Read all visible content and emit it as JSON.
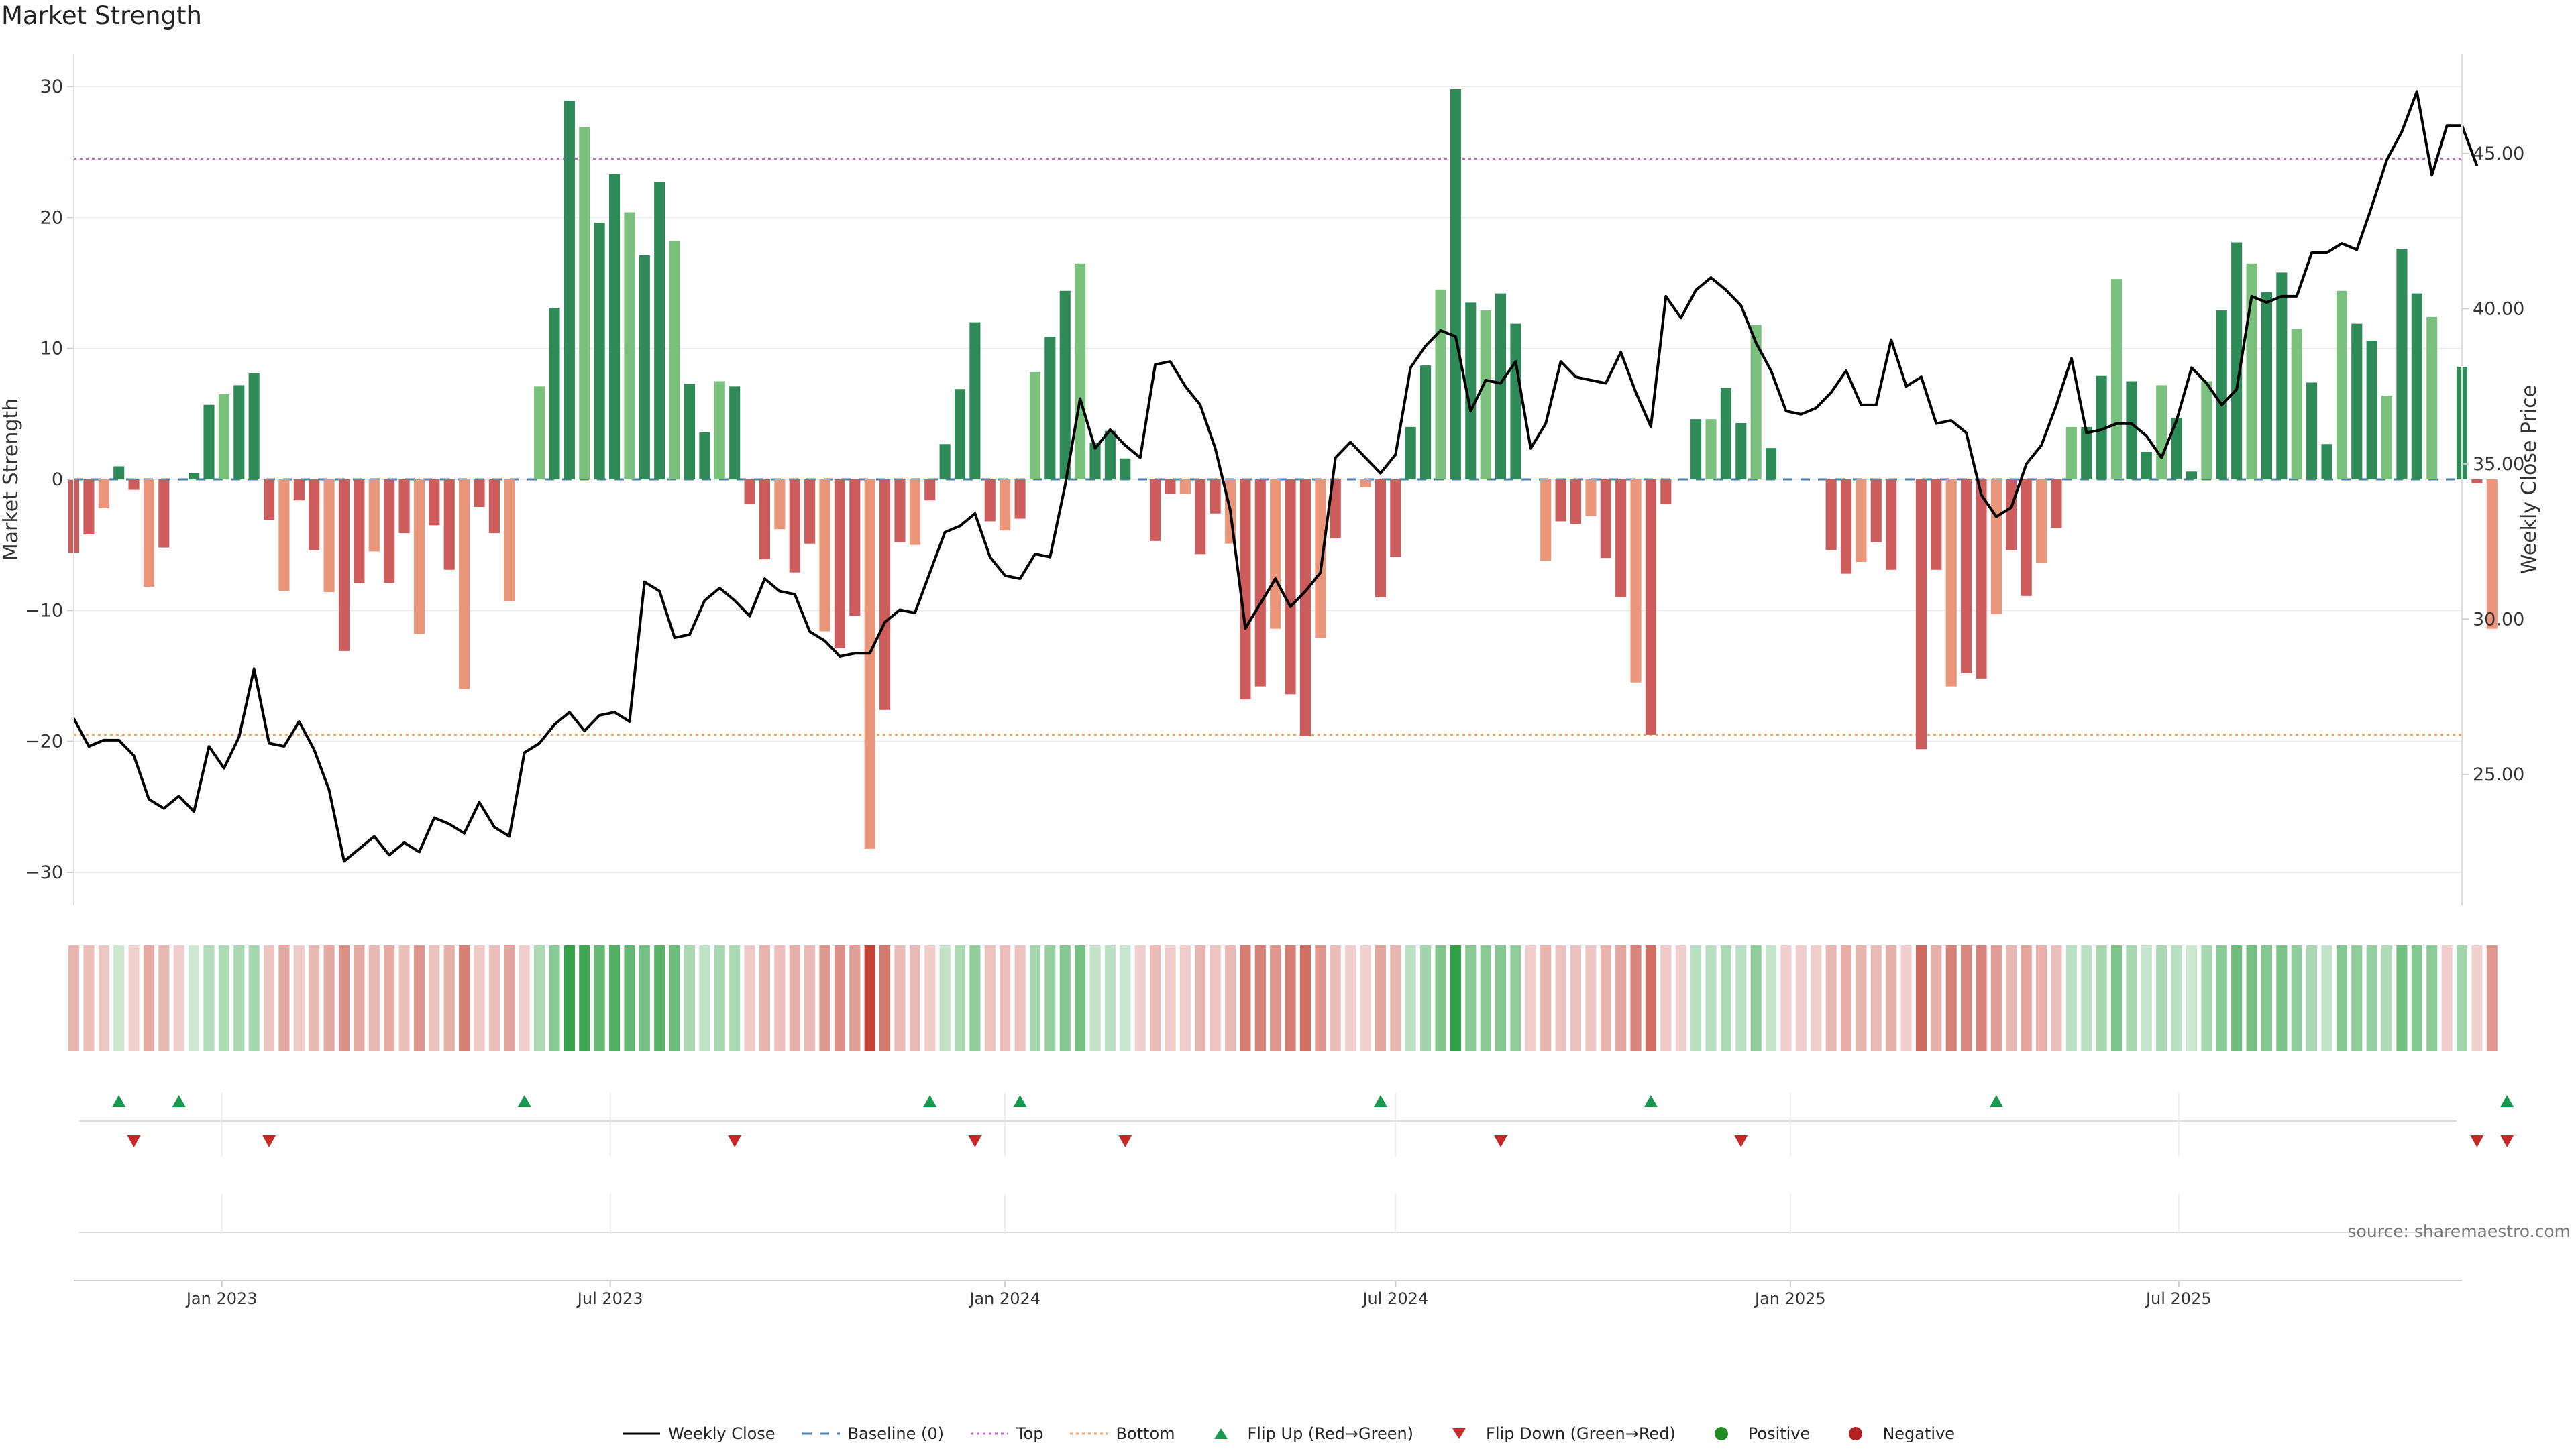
{
  "title": "Market Strength",
  "source": "source: sharemaestro.com",
  "colors": {
    "strong_green": "#2e8b57",
    "light_green": "#7bc17e",
    "strong_red": "#cd5c5c",
    "light_red": "#e9967a",
    "line": "#000000",
    "top_line": "#c264c8",
    "bottom_line": "#f4a460",
    "baseline": "#4a7fb0",
    "flip_up": "#1a9850",
    "flip_down": "#c62828",
    "positive": "#228b22",
    "negative": "#b22222"
  },
  "legend": [
    {
      "key": "weekly_close",
      "label": "Weekly Close",
      "icon": "line-solid-icon"
    },
    {
      "key": "baseline",
      "label": "Baseline (0)",
      "icon": "line-dashed-icon"
    },
    {
      "key": "top",
      "label": "Top",
      "icon": "line-dotted-purple-icon"
    },
    {
      "key": "bottom",
      "label": "Bottom",
      "icon": "line-dotted-orange-icon"
    },
    {
      "key": "flip_up",
      "label": "Flip Up (Red→Green)",
      "icon": "triangle-up-icon"
    },
    {
      "key": "flip_down",
      "label": "Flip Down (Green→Red)",
      "icon": "triangle-down-icon"
    },
    {
      "key": "positive",
      "label": "Positive",
      "icon": "dot-green-icon"
    },
    {
      "key": "negative",
      "label": "Negative",
      "icon": "dot-red-icon"
    }
  ],
  "chart_data": {
    "type": "bar",
    "title": "Market Strength",
    "ylabel": "Market Strength",
    "y2label": "Weekly Close Price",
    "ylim": [
      -32,
      32
    ],
    "y2lim": [
      21.0,
      48.0
    ],
    "yticks": [
      -30,
      -20,
      -10,
      0,
      10,
      20,
      30
    ],
    "y2ticks": [
      "25.00",
      "30.00",
      "35.00",
      "40.00",
      "45.00"
    ],
    "top_level": 24.5,
    "bottom_level": -19.5,
    "grid": true,
    "x_start": "2022-10-24",
    "x_end": "2025-11-10",
    "xticks": [
      {
        "label": "Jan 2023",
        "date": "2023-01-01"
      },
      {
        "label": "Jul 2023",
        "date": "2023-07-01"
      },
      {
        "label": "Jan 2024",
        "date": "2024-01-01"
      },
      {
        "label": "Jul 2024",
        "date": "2024-07-01"
      },
      {
        "label": "Jan 2025",
        "date": "2025-01-01"
      },
      {
        "label": "Jul 2025",
        "date": "2025-07-01"
      }
    ],
    "start_date": "2022-10-24",
    "interval_days": 7,
    "strength": [
      -5.6,
      -4.2,
      -2.2,
      1,
      -0.8,
      -8.2,
      -5.2,
      0,
      0.5,
      5.7,
      6.5,
      7.2,
      8.1,
      -3.1,
      -8.5,
      -1.6,
      -5.4,
      -8.6,
      -13.1,
      -7.9,
      -5.5,
      -7.9,
      -4.1,
      -11.8,
      -3.5,
      -6.9,
      -16,
      -2.1,
      -4.1,
      -9.3,
      0,
      7.1,
      13.1,
      28.9,
      26.9,
      19.6,
      23.3,
      20.4,
      17.1,
      22.7,
      18.2,
      7.3,
      3.6,
      7.5,
      7.1,
      -1.9,
      -6.1,
      -3.8,
      -7.1,
      -4.9,
      -11.6,
      -12.9,
      -10.4,
      -28.2,
      -17.6,
      -4.8,
      -5,
      -1.6,
      2.7,
      6.9,
      12,
      -3.2,
      -3.9,
      -3,
      8.2,
      10.9,
      14.4,
      16.5,
      2.8,
      3.7,
      1.6,
      0,
      -4.7,
      -1.1,
      -1.1,
      -5.7,
      -2.6,
      -4.9,
      -16.8,
      -15.8,
      -11.4,
      -16.4,
      -19.6,
      -12.1,
      -4.5,
      0,
      -0.6,
      -9,
      -5.9,
      4,
      8.7,
      14.5,
      29.8,
      13.5,
      12.9,
      14.2,
      11.9,
      0,
      -6.2,
      -3.2,
      -3.4,
      -2.8,
      -6,
      -9,
      -15.5,
      -19.5,
      -1.9,
      0,
      4.6,
      4.6,
      7,
      4.3,
      11.8,
      2.4,
      0,
      0,
      0,
      -5.4,
      -7.2,
      -6.3,
      -4.8,
      -6.9,
      0,
      -20.6,
      -6.9,
      -15.8,
      -14.8,
      -15.2,
      -10.3,
      -5.4,
      -8.9,
      -6.4,
      -3.7,
      4,
      4,
      7.9,
      15.3,
      7.5,
      2.1,
      7.2,
      4.7,
      0.6,
      7.5,
      12.9,
      18.1,
      16.5,
      14.3,
      15.8,
      11.5,
      7.4,
      2.7,
      14.4,
      11.9,
      10.6,
      6.4,
      17.6,
      14.2,
      12.4,
      0,
      8.6,
      -0.3,
      -11.4
    ],
    "close": [
      26.8,
      25.9,
      26.1,
      26.1,
      25.6,
      24.2,
      23.9,
      24.3,
      23.8,
      25.9,
      25.2,
      26.2,
      28.4,
      26.0,
      25.9,
      26.7,
      25.8,
      24.5,
      22.2,
      22.6,
      23.0,
      22.4,
      22.8,
      22.5,
      23.6,
      23.4,
      23.1,
      24.1,
      23.3,
      23.0,
      25.7,
      26.0,
      26.6,
      27.0,
      26.4,
      26.9,
      27.0,
      26.7,
      31.2,
      30.9,
      29.4,
      29.5,
      30.6,
      31.0,
      30.6,
      30.1,
      31.3,
      30.9,
      30.8,
      29.6,
      29.3,
      28.8,
      28.9,
      28.9,
      29.9,
      30.3,
      30.2,
      31.5,
      32.8,
      33.0,
      33.4,
      32.0,
      31.4,
      31.3,
      32.1,
      32.0,
      34.3,
      37.1,
      35.5,
      36.1,
      35.6,
      35.2,
      38.2,
      38.3,
      37.5,
      36.9,
      35.5,
      33.5,
      29.7,
      30.5,
      31.3,
      30.4,
      30.9,
      31.5,
      35.2,
      35.7,
      35.2,
      34.7,
      35.3,
      38.1,
      38.8,
      39.3,
      39.1,
      36.7,
      37.7,
      37.6,
      38.3,
      35.5,
      36.3,
      38.3,
      37.8,
      37.7,
      37.6,
      38.6,
      37.3,
      36.2,
      40.4,
      39.7,
      40.6,
      41.0,
      40.6,
      40.1,
      38.9,
      38.0,
      36.7,
      36.6,
      36.8,
      37.3,
      38.0,
      36.9,
      36.9,
      39.0,
      37.5,
      37.8,
      36.3,
      36.4,
      36.0,
      34.0,
      33.3,
      33.6,
      35.0,
      35.6,
      36.9,
      38.4,
      36.0,
      36.1,
      36.3,
      36.3,
      35.9,
      35.2,
      36.4,
      38.1,
      37.6,
      36.9,
      37.4,
      40.4,
      40.2,
      40.4,
      40.4,
      41.8,
      41.8,
      42.1,
      41.9,
      43.3,
      44.8,
      45.7,
      47.0,
      44.3,
      45.9,
      45.9,
      44.6
    ],
    "ribbon_note": "intensity of each week matches bar strength; green = positive, red = negative",
    "flip_up_weeks": [
      3,
      7,
      30,
      57,
      63,
      87,
      105,
      128,
      162
    ],
    "flip_down_weeks": [
      4,
      13,
      44,
      60,
      70,
      95,
      111,
      160,
      162
    ]
  }
}
